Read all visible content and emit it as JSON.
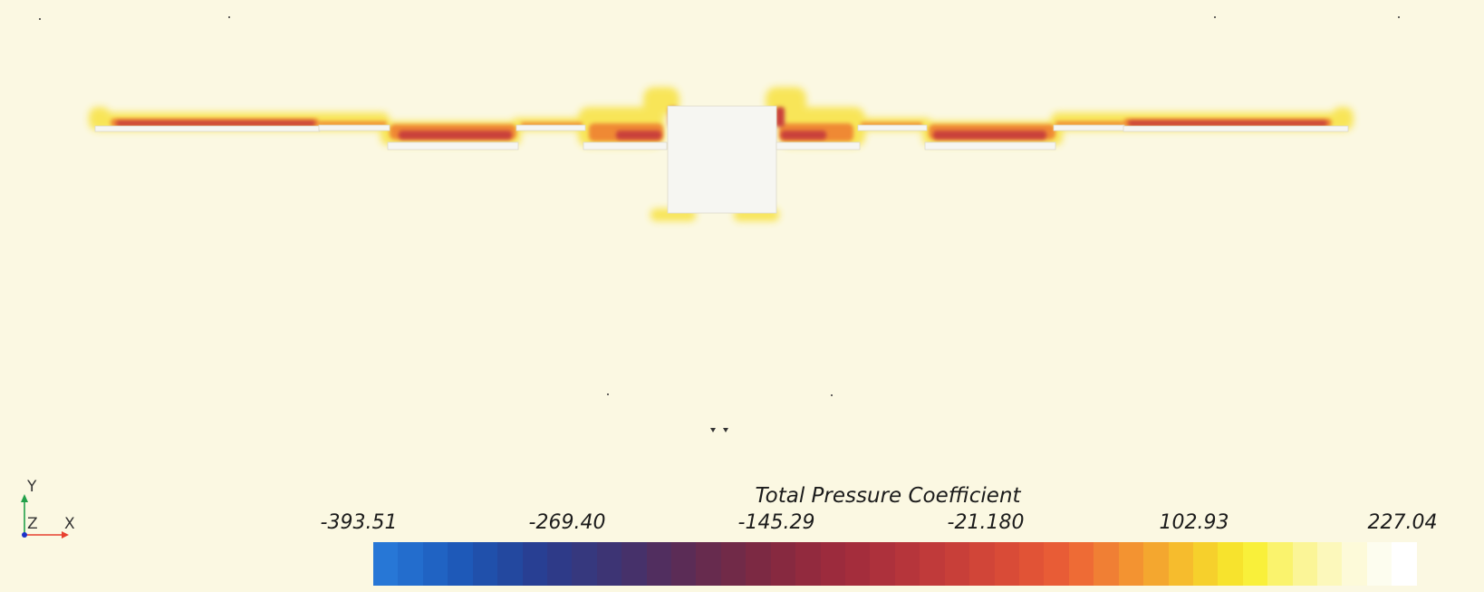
{
  "colorbar": {
    "title": "Total Pressure Coefficient",
    "tick_labels": [
      "-393.51",
      "-269.40",
      "-145.29",
      "-21.180",
      "102.93",
      "227.04"
    ],
    "range": [
      -393.51,
      227.04
    ],
    "colors": [
      "#2777d6",
      "#236dcd",
      "#2063c3",
      "#1e59b8",
      "#2050ab",
      "#23489f",
      "#283f93",
      "#2e3a88",
      "#36387e",
      "#3d3474",
      "#46316a",
      "#512e5f",
      "#5b2c56",
      "#672b4e",
      "#712a48",
      "#7c2943",
      "#872940",
      "#922a3e",
      "#9c2b3d",
      "#a42d3c",
      "#ad313c",
      "#b6353b",
      "#c03a3a",
      "#c83f39",
      "#d14538",
      "#d94b37",
      "#e15336",
      "#e85c36",
      "#ee6b35",
      "#f07f34",
      "#f39331",
      "#f4a72f",
      "#f6bc2d",
      "#f6d02c",
      "#f7e32d",
      "#f9f03a",
      "#faf36d",
      "#fbf597",
      "#fcf8bb",
      "#fdfad9",
      "#fdfdef",
      "#ffffff"
    ]
  },
  "axes_triad": {
    "y": "Y",
    "z": "Z",
    "x": "X"
  },
  "theme": {
    "background": "#fbf8e2",
    "geometry_fill": "#f6f6f2",
    "axis_x": "#e8402f",
    "axis_y": "#22a04a",
    "axis_z": "#1d32c9"
  }
}
